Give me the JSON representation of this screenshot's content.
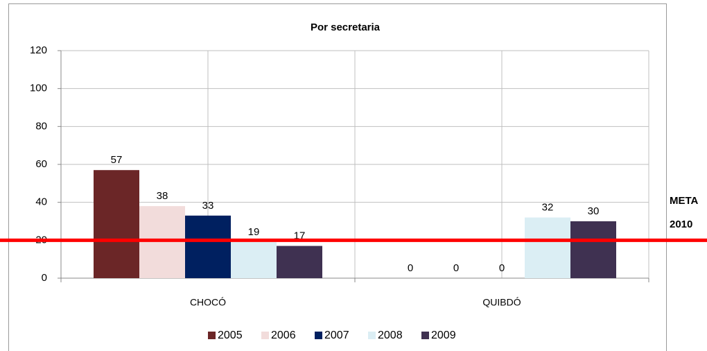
{
  "chart_data": {
    "type": "bar",
    "title": "Por secretaria",
    "categories": [
      "CHOCÓ",
      "QUIBDÓ"
    ],
    "series": [
      {
        "name": "2005",
        "color": "#6b2627",
        "values": [
          57,
          0
        ]
      },
      {
        "name": "2006",
        "color": "#f2dcdb",
        "values": [
          38,
          0
        ]
      },
      {
        "name": "2007",
        "color": "#002060",
        "values": [
          33,
          0
        ]
      },
      {
        "name": "2008",
        "color": "#dbeef4",
        "values": [
          19,
          32
        ]
      },
      {
        "name": "2009",
        "color": "#3f3151",
        "values": [
          17,
          30
        ]
      }
    ],
    "ylim": [
      0,
      120
    ],
    "yticks": [
      0,
      20,
      40,
      60,
      80,
      100,
      120
    ],
    "grid": true,
    "target_line": {
      "value": 20,
      "color": "#ff0000",
      "label": [
        "META",
        "2010"
      ]
    },
    "legend": "bottom"
  }
}
